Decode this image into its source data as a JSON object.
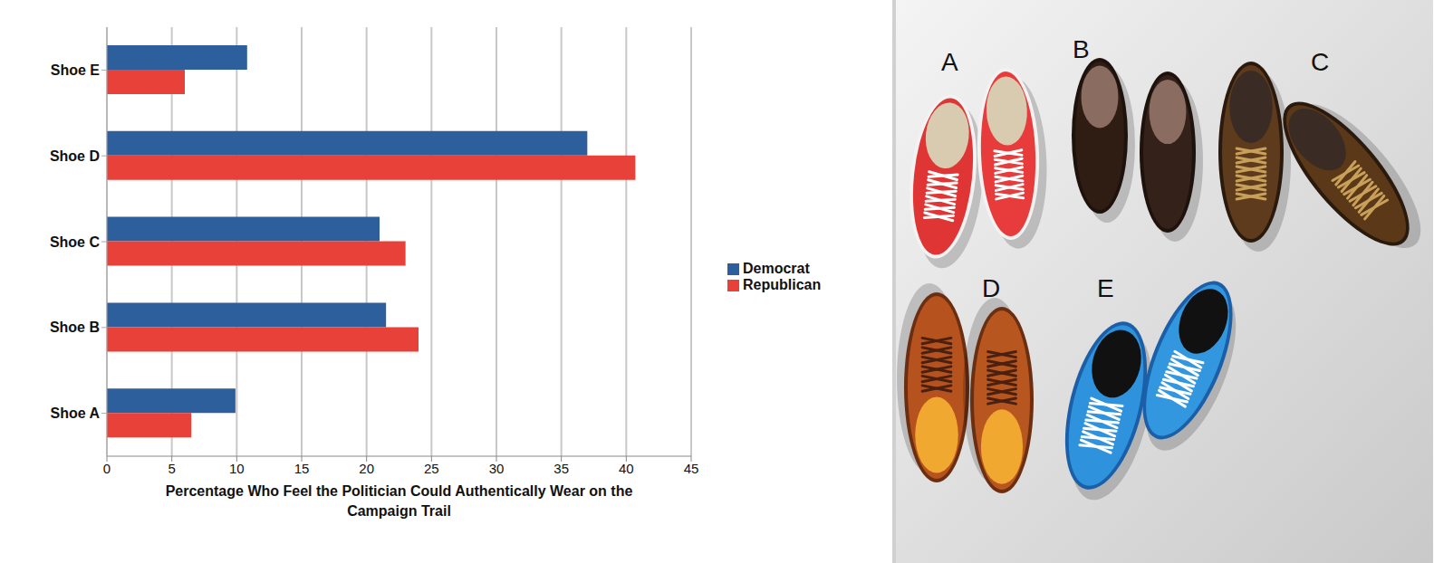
{
  "chart_data": {
    "type": "bar",
    "orientation": "horizontal",
    "categories": [
      "Shoe E",
      "Shoe D",
      "Shoe C",
      "Shoe B",
      "Shoe A"
    ],
    "series": [
      {
        "name": "Democrat",
        "color": "#2c5f9c",
        "values": [
          10.8,
          37,
          21,
          21.5,
          9.9
        ]
      },
      {
        "name": "Republican",
        "color": "#e8413a",
        "values": [
          6,
          40.7,
          23,
          24,
          6.5
        ]
      }
    ],
    "xlabel": "Percentage Who Feel the Politician Could Authentically Wear on the Campaign Trail",
    "xlim": [
      0,
      45
    ],
    "xticks": [
      0,
      5,
      10,
      15,
      20,
      25,
      30,
      35,
      40,
      45
    ],
    "grid": true,
    "legend": "right"
  },
  "image": {
    "labels": [
      "A",
      "B",
      "C",
      "D",
      "E"
    ]
  }
}
